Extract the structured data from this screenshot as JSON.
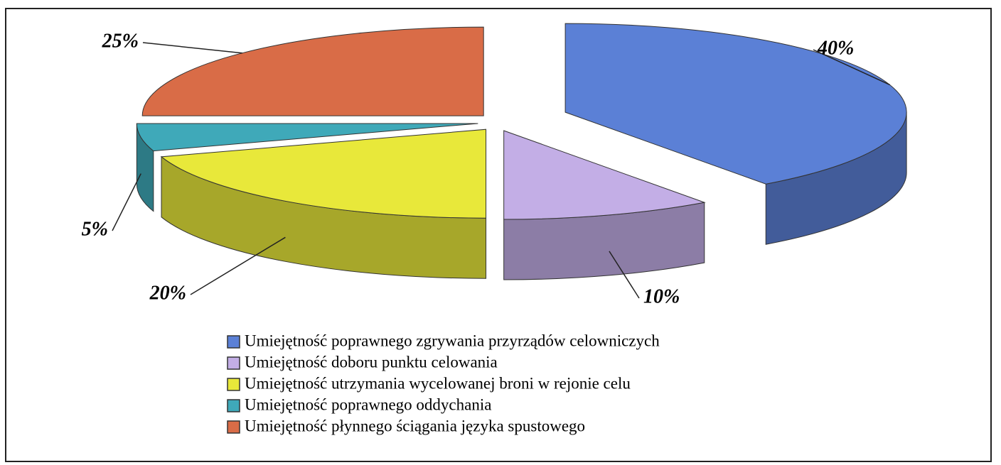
{
  "chart_data": {
    "type": "pie",
    "categories": [
      "Umiejętność poprawnego zgrywania przyrządów celowniczych",
      "Umiejętność doboru punktu celowania",
      "Umiejętność utrzymania wycelowanej broni w rejonie celu",
      "Umiejętność poprawnego oddychania",
      "Umiejętność płynnego ściągania języka spustowego"
    ],
    "values": [
      40,
      10,
      20,
      5,
      25
    ],
    "value_labels": [
      "40%",
      "10%",
      "20%",
      "5%",
      "25%"
    ],
    "colors": [
      "#5b80d6",
      "#c3aee6",
      "#e8e83a",
      "#3fa9b9",
      "#d96c47"
    ]
  }
}
